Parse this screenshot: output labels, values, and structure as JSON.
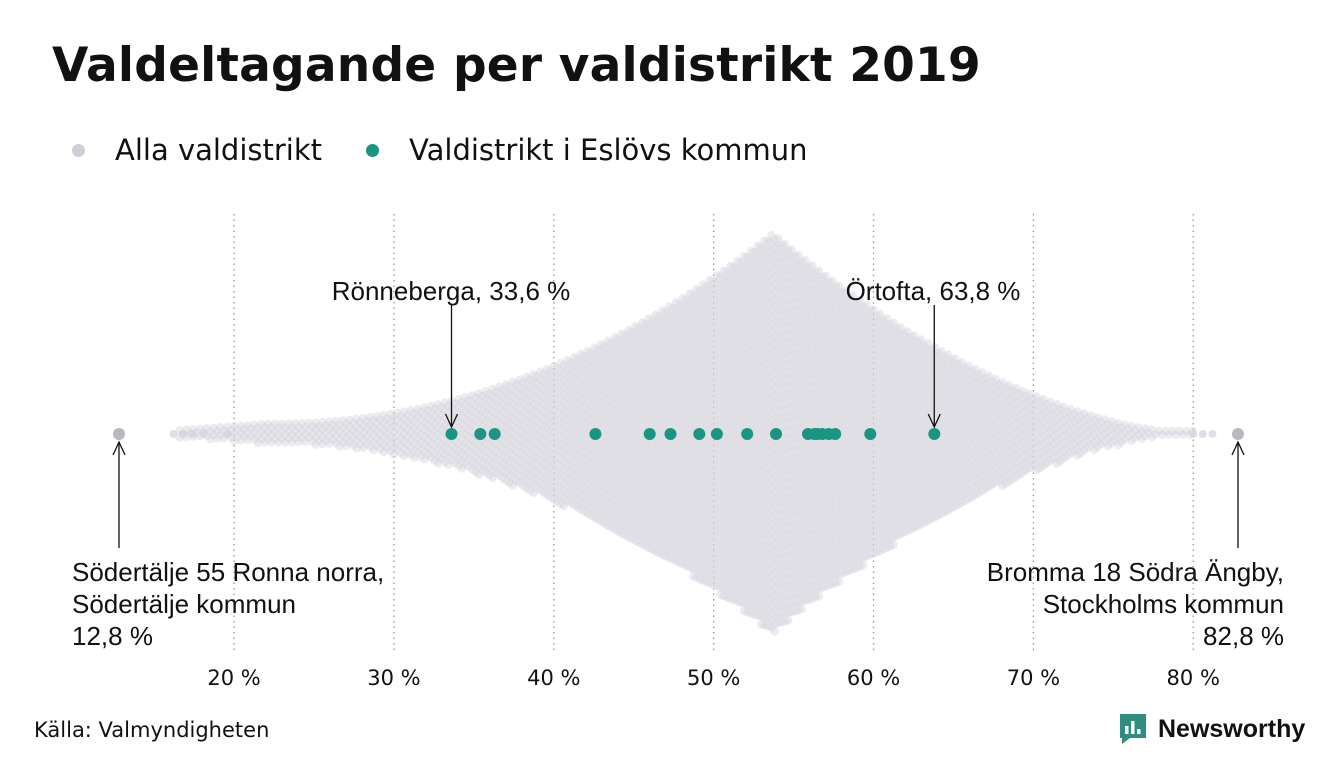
{
  "colors": {
    "all": "#d4d2dc",
    "eslov": "#1a9584",
    "text": "#111111",
    "grid": "#999999",
    "logo_accent": "#2f8c80"
  },
  "chart_data": {
    "type": "scatter",
    "title": "Valdeltagande per valdistrikt 2019",
    "legend": {
      "placement": "top-left",
      "items": [
        {
          "label": "Alla valdistrikt",
          "color": "#c0bfca"
        },
        {
          "label": "Valdistrikt i Eslövs kommun",
          "color": "#1a9584"
        }
      ]
    },
    "xlim": [
      12.8,
      82.8
    ],
    "x_ticks": [
      20,
      30,
      40,
      50,
      60,
      70,
      80
    ],
    "x_tick_labels": [
      "20 %",
      "30 %",
      "40 %",
      "50 %",
      "60 %",
      "70 %",
      "80 %"
    ],
    "grid": "vertical dotted",
    "series": [
      {
        "name": "Alla valdistrikt",
        "distribution_peak": 53.7,
        "outliers": [
          12.8,
          16.2,
          16.8,
          17.4,
          18.1,
          19.6,
          80.0,
          80.6,
          81.2,
          82.8
        ]
      },
      {
        "name": "Valdistrikt i Eslövs kommun",
        "values": [
          33.6,
          35.4,
          36.3,
          42.6,
          46.0,
          47.3,
          49.1,
          50.2,
          52.1,
          53.9,
          55.9,
          56.3,
          56.5,
          56.8,
          57.2,
          57.6,
          59.8,
          63.8
        ]
      }
    ],
    "annotations": [
      {
        "lines": [
          "Rönneberga, 33,6 %"
        ],
        "x": 33.6
      },
      {
        "lines": [
          "Örtofta, 63,8 %"
        ],
        "x": 63.8
      },
      {
        "lines": [
          "Södertälje 55 Ronna norra,",
          "Södertälje kommun",
          "12,8 %"
        ],
        "x": 12.8
      },
      {
        "lines": [
          "Bromma 18 Södra Ängby,",
          "Stockholms kommun",
          "82,8 %"
        ],
        "x": 82.8
      }
    ]
  },
  "footer": {
    "source": "Källa: Valmyndigheten",
    "logo_text": "Newsworthy",
    "logo_icon": "bar-chart-speech-icon"
  }
}
